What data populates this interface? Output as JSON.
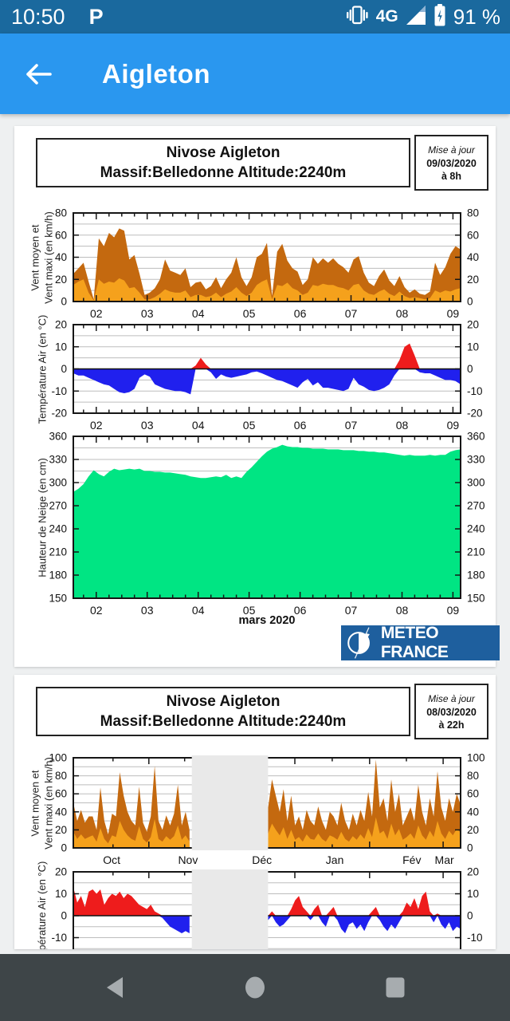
{
  "status_bar": {
    "time": "10:50",
    "app_badge": "P",
    "network": "4G",
    "battery_percent": "91 %"
  },
  "app_bar": {
    "title": "Aigleton"
  },
  "nav_bar": {
    "back": "back",
    "home": "home",
    "recents": "recents"
  },
  "chart_data": [
    {
      "type": "area",
      "title_line1": "Nivose Aigleton",
      "title_line2": "Massif:Belledonne Altitude:2240m",
      "update_label": "Mise à jour",
      "update_date": "09/03/2020",
      "update_time": "à 8h",
      "logo_text": "METEO FRANCE",
      "x_axis": {
        "domain": [
          1.55,
          9.15
        ],
        "major_ticks": [
          2,
          3,
          4,
          5,
          6,
          7,
          8,
          9
        ],
        "minor_step": 0.25,
        "tick_labels": [
          {
            "text": "02",
            "pos": 2
          },
          {
            "text": "03",
            "pos": 3
          },
          {
            "text": "04",
            "pos": 4
          },
          {
            "text": "05",
            "pos": 5
          },
          {
            "text": "06",
            "pos": 6
          },
          {
            "text": "07",
            "pos": 7
          },
          {
            "text": "08",
            "pos": 8
          },
          {
            "text": "09",
            "pos": 9
          }
        ],
        "axis_label": "mars 2020"
      },
      "panels": [
        {
          "name": "wind",
          "kind": "stack2",
          "ylabel1": "Vent moyen et",
          "ylabel2": "Vent maxi (en km/h)",
          "ymin": 0,
          "ymax": 80,
          "label_step": 20,
          "grid_step": 10,
          "color_max": "#c4690f",
          "color_mean": "#f5a11c",
          "segments": [
            {
              "x_start": 1.55,
              "x_step": 0.1,
              "maxi": [
                25,
                30,
                35,
                18,
                2,
                57,
                50,
                62,
                58,
                66,
                64,
                38,
                42,
                25,
                6,
                8,
                12,
                20,
                38,
                28,
                26,
                24,
                30,
                13,
                17,
                18,
                11,
                14,
                22,
                12,
                20,
                26,
                40,
                22,
                14,
                22,
                40,
                43,
                53,
                5,
                45,
                52,
                37,
                30,
                27,
                15,
                20,
                40,
                34,
                39,
                35,
                39,
                34,
                31,
                26,
                38,
                41,
                26,
                17,
                14,
                23,
                29,
                19,
                14,
                23,
                13,
                8,
                11,
                7,
                6,
                9,
                35,
                24,
                31,
                43,
                50,
                47
              ],
              "moyen": [
                15,
                18,
                20,
                8,
                1,
                20,
                16,
                18,
                17,
                21,
                19,
                12,
                13,
                8,
                2,
                2,
                4,
                7,
                11,
                9,
                8,
                8,
                10,
                4,
                6,
                6,
                4,
                5,
                8,
                4,
                7,
                9,
                13,
                8,
                5,
                8,
                15,
                18,
                20,
                2,
                15,
                14,
                17,
                12,
                10,
                6,
                8,
                15,
                14,
                16,
                15,
                15,
                13,
                12,
                10,
                15,
                16,
                10,
                7,
                6,
                9,
                11,
                7,
                5,
                9,
                5,
                3,
                4,
                3,
                2,
                3,
                10,
                8,
                10,
                9,
                11,
                12
              ]
            }
          ]
        },
        {
          "name": "temperature",
          "kind": "posneg",
          "ylabel1": "Température Air (en °C)",
          "ylabel2": "",
          "ymin": -20,
          "ymax": 20,
          "label_step": 10,
          "grid_step": 5,
          "zero_line": true,
          "color_pos": "#ee1c1c",
          "color_neg": "#2020ee",
          "segments": [
            {
              "x_start": 1.55,
              "x_step": 0.1,
              "values": [
                -2,
                -3,
                -3,
                -4,
                -5,
                -6,
                -7,
                -7.5,
                -9,
                -10.5,
                -11,
                -10.5,
                -9,
                -4,
                -2.5,
                -3.5,
                -7,
                -8,
                -9,
                -9.5,
                -10,
                -10,
                -10.5,
                -11.5,
                1.5,
                5,
                2,
                -1.5,
                -4.5,
                -2.5,
                -3.5,
                -4,
                -3.5,
                -3,
                -2.5,
                -1.5,
                -1.2,
                -2,
                -3,
                -4,
                -5,
                -5.5,
                -6.5,
                -7.5,
                -8.5,
                -6,
                -4.5,
                -7.5,
                -6,
                -8.5,
                -8.5,
                -9,
                -9.5,
                -10,
                -9,
                -4,
                -7,
                -8,
                -9.5,
                -10,
                -9.5,
                -8.5,
                -7,
                -3,
                4,
                10,
                11.5,
                6,
                -1.5,
                -2,
                -2,
                -3,
                -4,
                -5,
                -5,
                -5.5,
                -7
              ]
            }
          ]
        },
        {
          "name": "snow-depth",
          "kind": "area",
          "ylabel1": "Hauteur de Neige (en cm)",
          "ylabel2": "",
          "ymin": 150,
          "ymax": 360,
          "label_step": 30,
          "grid_step": 15,
          "color": "#00e583",
          "segments": [
            {
              "x_start": 1.55,
              "x_step": 0.1,
              "values": [
                288,
                292,
                298,
                308,
                316,
                311,
                308,
                314,
                318,
                316,
                317,
                318,
                317,
                318,
                315,
                315,
                314,
                314,
                313,
                313,
                312,
                311,
                310,
                308,
                307,
                306,
                306,
                307,
                308,
                307,
                310,
                306,
                308,
                306,
                314,
                320,
                327,
                334,
                340,
                344,
                346,
                349,
                347,
                346,
                346,
                345,
                345,
                344,
                344,
                344,
                343,
                343,
                343,
                342,
                342,
                342,
                341,
                341,
                340,
                340,
                339,
                339,
                338,
                337,
                336,
                335,
                336,
                335,
                335,
                335,
                336,
                335,
                336,
                336,
                340,
                342,
                343
              ]
            }
          ]
        }
      ]
    },
    {
      "type": "area",
      "title_line1": "Nivose Aigleton",
      "title_line2": "Massif:Belledonne Altitude:2240m",
      "update_label": "Mise à jour",
      "update_date": "08/03/2020",
      "update_time": "à 22h",
      "x_axis": {
        "domain": [
          0,
          1
        ],
        "major_ticks": [
          0.195,
          0.38,
          0.572,
          0.765,
          0.955
        ],
        "gap": [
          0.306,
          0.503
        ],
        "tick_labels": [
          {
            "text": "Oct",
            "pos": 0.099
          },
          {
            "text": "Nov",
            "pos": 0.296
          },
          {
            "text": "Déc",
            "pos": 0.487
          },
          {
            "text": "Jan",
            "pos": 0.675
          },
          {
            "text": "Fév",
            "pos": 0.874
          },
          {
            "text": "Mar",
            "pos": 0.958
          }
        ]
      },
      "panels": [
        {
          "name": "wind",
          "kind": "stack2",
          "ylabel1": "Vent moyen et",
          "ylabel2": "Vent maxi (en km/h)",
          "ymin": 0,
          "ymax": 100,
          "label_step": 20,
          "grid_step": 10,
          "color_max": "#c4690f",
          "color_mean": "#f5a11c",
          "segments": [
            {
              "x_start": 0.0,
              "x_step": 0.01,
              "maxi": [
                50,
                30,
                42,
                28,
                35,
                35,
                20,
                67,
                30,
                15,
                38,
                35,
                84,
                58,
                40,
                30,
                25,
                68,
                28,
                18,
                35,
                91,
                30,
                20,
                36,
                25,
                38,
                70,
                25,
                40,
                20
              ],
              "moyen": [
                18,
                10,
                15,
                10,
                12,
                14,
                7,
                22,
                10,
                5,
                14,
                12,
                30,
                20,
                14,
                10,
                8,
                24,
                10,
                6,
                12,
                32,
                10,
                7,
                13,
                9,
                13,
                25,
                9,
                14,
                7
              ]
            },
            {
              "x_start": 0.503,
              "x_step": 0.00994,
              "maxi": [
                45,
                76,
                58,
                40,
                65,
                30,
                58,
                25,
                35,
                20,
                42,
                30,
                25,
                46,
                30,
                20,
                40,
                35,
                25,
                50,
                30,
                20,
                38,
                25,
                42,
                30,
                62,
                35,
                98,
                45,
                55,
                30,
                76,
                40,
                60,
                25,
                35,
                45,
                30,
                70,
                40,
                25,
                55,
                35,
                85,
                45,
                30,
                55,
                40,
                60,
                48
              ],
              "moyen": [
                16,
                27,
                20,
                14,
                23,
                10,
                20,
                9,
                12,
                7,
                15,
                10,
                9,
                16,
                10,
                7,
                14,
                12,
                9,
                18,
                10,
                7,
                13,
                9,
                15,
                10,
                22,
                12,
                34,
                16,
                19,
                10,
                27,
                14,
                21,
                9,
                12,
                16,
                10,
                25,
                14,
                9,
                19,
                12,
                30,
                16,
                10,
                19,
                14,
                21,
                17
              ]
            }
          ]
        },
        {
          "name": "temperature",
          "kind": "posneg",
          "ylabel1": "Température Air (en °C)",
          "ylabel2": "",
          "ymin": -20,
          "ymax": 20,
          "label_step": 10,
          "grid_step": 5,
          "zero_line": true,
          "color_pos": "#ee1c1c",
          "color_neg": "#2020ee",
          "segments": [
            {
              "x_start": 0.0,
              "x_step": 0.01,
              "values": [
                13,
                6,
                9,
                4,
                11,
                12,
                10,
                12,
                5,
                8,
                10,
                9,
                11,
                8,
                10,
                9,
                7,
                5,
                4,
                3,
                5,
                2,
                1,
                -1,
                -3,
                -5,
                -6,
                -7,
                -8,
                -7,
                -8
              ]
            },
            {
              "x_start": 0.503,
              "x_step": 0.00994,
              "values": [
                -2,
                2,
                -3,
                -5,
                -4,
                -2,
                3,
                7,
                9,
                4,
                2,
                -2,
                3,
                5,
                -3,
                -5,
                2,
                4,
                -2,
                -6,
                -8,
                -4,
                -3,
                -6,
                -4,
                -7,
                -3,
                2,
                4,
                -2,
                -5,
                -7,
                -4,
                -6,
                -3,
                2,
                6,
                4,
                8,
                3,
                9,
                11,
                2,
                -3,
                1,
                -4,
                -6,
                -3,
                -7,
                -5,
                -6
              ]
            }
          ]
        }
      ]
    }
  ]
}
